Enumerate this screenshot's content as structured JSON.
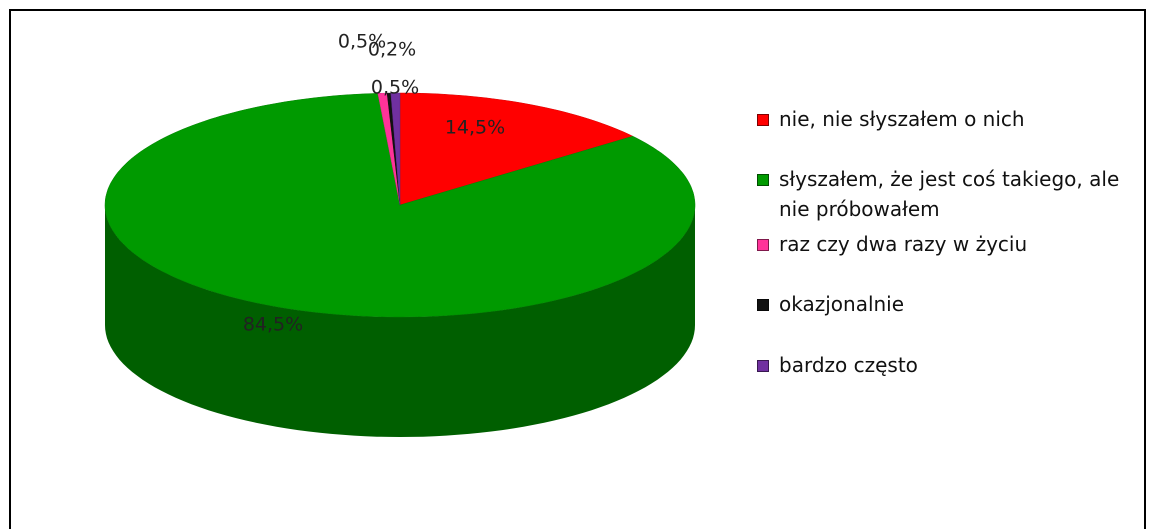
{
  "chart_data": {
    "type": "pie",
    "categories": [
      "nie, nie słyszałem o nich",
      "słyszałem, że jest coś takiego, ale nie próbowałem",
      "raz czy dwa razy w życiu",
      "okazjonalnie",
      "bardzo często"
    ],
    "values": [
      14.5,
      84.5,
      0.5,
      0.2,
      0.5
    ],
    "value_labels": [
      "14,5%",
      "84,5%",
      "0,5%",
      "0,2%",
      "0,5%"
    ],
    "colors": [
      "#ff0000",
      "#009a00",
      "#ff3399",
      "#111111",
      "#7030a0"
    ],
    "legend": "right"
  }
}
